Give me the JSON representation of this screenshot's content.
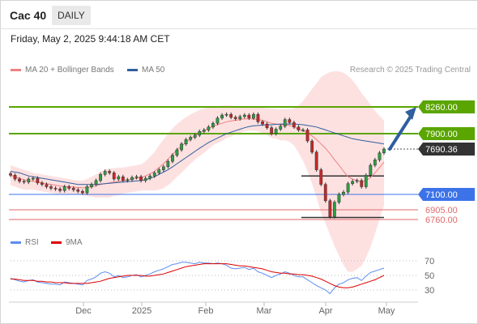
{
  "header": {
    "title": "Cac 40",
    "timeframe": "DAILY",
    "datetime": "Friday, May 2, 2025 9:44:18 AM CET"
  },
  "legend": {
    "ma20": "MA 20 + Bollinger Bands",
    "ma50": "MA 50",
    "credit": "Research © 2025 Trading Central"
  },
  "rsi_legend": {
    "rsi": "RSI",
    "ma": "9MA"
  },
  "colors": {
    "up_candle": "#2f9e44",
    "down_candle": "#c62828",
    "resistance": "#5aa500",
    "support": "#3d73e8",
    "support_red": "#e26a6a",
    "ma20": "#f08080",
    "bollinger_fill": "#fddcdc",
    "ma50": "#2f5f9e",
    "rsi": "#5b8def",
    "rsi_ma": "#dd0000",
    "pivot": "#333333",
    "arrow": "#2f5f9e"
  },
  "chart_data": [
    {
      "type": "candlestick",
      "title": "Cac 40",
      "timeframe": "DAILY",
      "x_ticks": [
        "Dec",
        "2025",
        "Feb",
        "Mar",
        "Apr",
        "May"
      ],
      "ylim": [
        6700,
        8300
      ],
      "price_levels": [
        {
          "value": 8260.0,
          "label": "8260.00",
          "kind": "resistance"
        },
        {
          "value": 7900.0,
          "label": "7900.00",
          "kind": "resistance"
        },
        {
          "value": 7690.36,
          "label": "7690.36",
          "kind": "last"
        },
        {
          "value": 7100.0,
          "label": "7100.00",
          "kind": "pivot"
        },
        {
          "value": 6905.0,
          "label": "6905.00",
          "kind": "support"
        },
        {
          "value": 6760.0,
          "label": "6760.00",
          "kind": "support"
        }
      ],
      "close": [
        7350,
        7300,
        7270,
        7260,
        7300,
        7310,
        7250,
        7230,
        7200,
        7180,
        7170,
        7150,
        7200,
        7180,
        7160,
        7140,
        7120,
        7200,
        7230,
        7280,
        7360,
        7400,
        7380,
        7300,
        7330,
        7280,
        7290,
        7320,
        7330,
        7280,
        7310,
        7340,
        7380,
        7420,
        7460,
        7530,
        7610,
        7680,
        7760,
        7820,
        7850,
        7880,
        7930,
        7950,
        7990,
        8040,
        8110,
        8150,
        8160,
        8120,
        8100,
        8130,
        8150,
        8110,
        8160,
        8060,
        8030,
        7980,
        7900,
        7960,
        8000,
        8090,
        8050,
        7990,
        7950,
        7950,
        7800,
        7650,
        7420,
        7230,
        7020,
        6800,
        7000,
        7100,
        7130,
        7240,
        7270,
        7280,
        7200,
        7350,
        7480,
        7550,
        7640,
        7690
      ],
      "ma20": [
        7350,
        7330,
        7310,
        7290,
        7280,
        7270,
        7260,
        7250,
        7240,
        7230,
        7220,
        7210,
        7205,
        7200,
        7195,
        7190,
        7185,
        7190,
        7200,
        7210,
        7230,
        7240,
        7250,
        7260,
        7270,
        7280,
        7290,
        7300,
        7310,
        7320,
        7340,
        7370,
        7400,
        7450,
        7500,
        7560,
        7620,
        7680,
        7730,
        7780,
        7830,
        7870,
        7910,
        7940,
        7970,
        8000,
        8020,
        8040,
        8060,
        8070,
        8080,
        8090,
        8100,
        8100,
        8100,
        8090,
        8080,
        8060,
        8040,
        8030,
        8020,
        8020,
        8010,
        7990,
        7960,
        7940,
        7910,
        7870,
        7820,
        7760,
        7700,
        7630,
        7550,
        7480,
        7400,
        7330,
        7300,
        7280,
        7260,
        7280,
        7320,
        7380,
        7450,
        7520
      ],
      "ma50": [
        7400,
        7390,
        7380,
        7360,
        7340,
        7330,
        7320,
        7310,
        7300,
        7290,
        7280,
        7270,
        7260,
        7250,
        7240,
        7230,
        7230,
        7230,
        7230,
        7230,
        7235,
        7240,
        7245,
        7250,
        7255,
        7260,
        7265,
        7270,
        7275,
        7280,
        7290,
        7310,
        7330,
        7360,
        7390,
        7420,
        7460,
        7500,
        7540,
        7580,
        7620,
        7660,
        7700,
        7740,
        7780,
        7810,
        7840,
        7870,
        7900,
        7920,
        7940,
        7960,
        7980,
        7995,
        8005,
        8010,
        8015,
        8020,
        8020,
        8025,
        8030,
        8030,
        8030,
        8030,
        8025,
        8020,
        8010,
        8000,
        7990,
        7970,
        7950,
        7930,
        7910,
        7890,
        7870,
        7850,
        7830,
        7820,
        7810,
        7800,
        7790,
        7780,
        7770,
        7760
      ],
      "bb_upper": [
        7480,
        7460,
        7440,
        7420,
        7400,
        7380,
        7370,
        7360,
        7350,
        7340,
        7330,
        7320,
        7310,
        7300,
        7290,
        7280,
        7280,
        7300,
        7330,
        7360,
        7400,
        7420,
        7440,
        7440,
        7450,
        7450,
        7460,
        7470,
        7480,
        7490,
        7530,
        7590,
        7650,
        7740,
        7820,
        7900,
        7970,
        8030,
        8080,
        8120,
        8160,
        8190,
        8220,
        8240,
        8250,
        8260,
        8270,
        8280,
        8280,
        8280,
        8270,
        8270,
        8270,
        8260,
        8260,
        8250,
        8250,
        8240,
        8240,
        8230,
        8230,
        8230,
        8230,
        8240,
        8280,
        8340,
        8420,
        8500,
        8580,
        8660,
        8700,
        8730,
        8740,
        8740,
        8720,
        8680,
        8620,
        8540,
        8450,
        8370,
        8290,
        8210,
        8140,
        8080
      ],
      "bb_lower": [
        7220,
        7200,
        7180,
        7160,
        7160,
        7160,
        7150,
        7140,
        7130,
        7120,
        7110,
        7100,
        7100,
        7100,
        7100,
        7100,
        7090,
        7080,
        7070,
        7060,
        7060,
        7060,
        7060,
        7080,
        7090,
        7110,
        7120,
        7130,
        7140,
        7150,
        7150,
        7150,
        7150,
        7160,
        7180,
        7220,
        7270,
        7330,
        7380,
        7440,
        7500,
        7550,
        7600,
        7640,
        7690,
        7740,
        7770,
        7800,
        7840,
        7860,
        7890,
        7910,
        7930,
        7940,
        7940,
        7930,
        7910,
        7880,
        7840,
        7830,
        7810,
        7810,
        7790,
        7740,
        7640,
        7540,
        7400,
        7240,
        7060,
        6860,
        6700,
        6530,
        6360,
        6220,
        6080,
        5980,
        5980,
        6020,
        6070,
        6190,
        6350,
        6550,
        6760,
        6960
      ]
    },
    {
      "type": "line",
      "title": "RSI",
      "ylim": [
        20,
        80
      ],
      "y_ticks": [
        70,
        50,
        30
      ],
      "series": [
        {
          "name": "RSI",
          "values": [
            46,
            44,
            42,
            41,
            43,
            44,
            41,
            40,
            39,
            38,
            38,
            37,
            41,
            40,
            39,
            38,
            37,
            43,
            45,
            48,
            53,
            55,
            53,
            48,
            50,
            47,
            48,
            50,
            51,
            48,
            50,
            52,
            55,
            57,
            59,
            62,
            65,
            66,
            68,
            68,
            67,
            66,
            68,
            67,
            67,
            66,
            67,
            66,
            64,
            60,
            59,
            60,
            61,
            58,
            60,
            55,
            53,
            50,
            47,
            50,
            52,
            55,
            53,
            50,
            48,
            48,
            44,
            40,
            36,
            33,
            30,
            25,
            33,
            38,
            40,
            44,
            46,
            47,
            43,
            49,
            54,
            56,
            58,
            60
          ]
        },
        {
          "name": "9MA",
          "values": [
            45,
            45,
            44,
            43,
            43,
            43,
            42,
            42,
            41,
            41,
            40,
            40,
            40,
            39,
            39,
            39,
            39,
            39,
            40,
            41,
            42,
            44,
            46,
            47,
            48,
            49,
            50,
            50,
            50,
            50,
            49,
            49,
            50,
            51,
            52,
            54,
            56,
            58,
            60,
            62,
            63,
            64,
            65,
            66,
            66,
            66,
            66,
            66,
            66,
            65,
            64,
            63,
            63,
            62,
            61,
            60,
            59,
            57,
            55,
            54,
            53,
            53,
            52,
            52,
            51,
            51,
            50,
            49,
            47,
            45,
            42,
            39,
            36,
            34,
            33,
            33,
            34,
            36,
            38,
            40,
            42,
            44,
            47,
            50
          ]
        }
      ]
    }
  ]
}
